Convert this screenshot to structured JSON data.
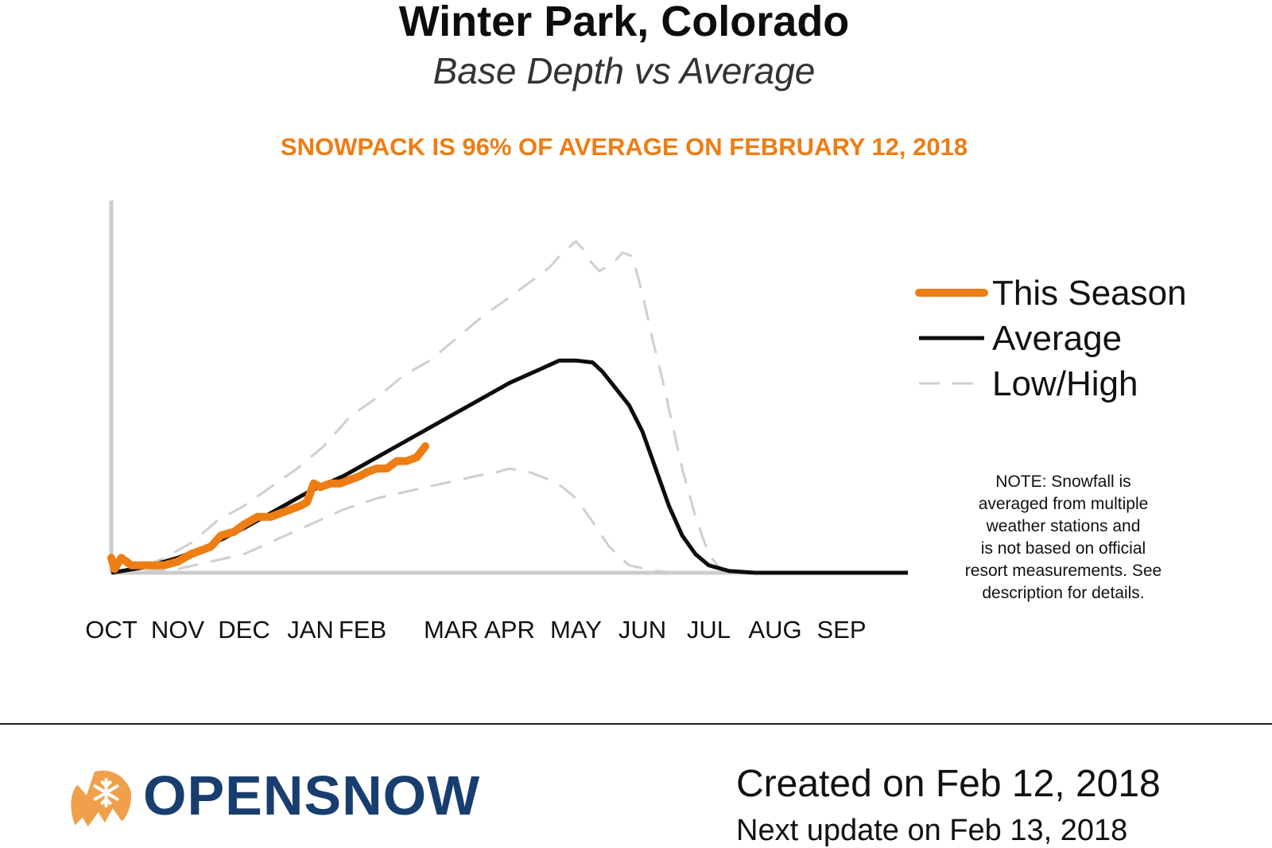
{
  "header": {
    "title": "Winter Park, Colorado",
    "subtitle": "Base Depth vs Average",
    "headline": "SNOWPACK IS 96% OF AVERAGE ON FEBRUARY 12, 2018"
  },
  "chart_data": {
    "type": "line",
    "title": "Winter Park, Colorado",
    "subtitle": "Base Depth vs Average",
    "xlabel": "",
    "ylabel": "",
    "x_ticks": [
      "OCT",
      "NOV",
      "DEC",
      "JAN",
      "FEB",
      "MAR",
      "APR",
      "MAY",
      "JUN",
      "JUL",
      "AUG",
      "SEP"
    ],
    "xlim": [
      0,
      12
    ],
    "ylim": [
      0,
      100
    ],
    "y_axis_labels_shown": false,
    "grid": false,
    "legend_position": "right",
    "x_unit": "months since Oct 1",
    "series": [
      {
        "name": "This Season",
        "style": "solid-thick",
        "color": "#ee7d14",
        "x": [
          0,
          0.05,
          0.15,
          0.3,
          0.5,
          0.8,
          1.0,
          1.2,
          1.35,
          1.5,
          1.65,
          1.85,
          2.0,
          2.1,
          2.2,
          2.4,
          2.55,
          2.7,
          2.85,
          2.95,
          3.05,
          3.15,
          3.3,
          3.45,
          3.6,
          3.75,
          3.85,
          4.0,
          4.15,
          4.3,
          4.45,
          4.6,
          4.73
        ],
        "y": [
          4,
          1,
          4,
          2,
          2,
          2,
          3,
          5,
          6,
          7,
          10,
          11,
          13,
          14,
          15,
          15,
          16,
          17,
          18,
          19,
          24,
          23,
          24,
          24,
          25,
          26,
          27,
          28,
          28,
          30,
          30,
          31,
          34
        ]
      },
      {
        "name": "Average",
        "style": "solid",
        "color": "#0d0d0d",
        "x": [
          0,
          0.5,
          1.0,
          1.5,
          2.0,
          2.5,
          3.0,
          3.5,
          4.0,
          4.5,
          5.0,
          5.5,
          6.0,
          6.5,
          6.75,
          7.0,
          7.25,
          7.4,
          7.6,
          7.8,
          8.0,
          8.2,
          8.4,
          8.6,
          8.8,
          9.0,
          9.3,
          9.7,
          10.0,
          12.0
        ],
        "y": [
          0,
          1.5,
          4,
          7.5,
          12,
          17,
          22,
          26,
          31,
          36,
          41,
          46,
          51,
          55,
          57,
          57,
          56.5,
          54,
          49.5,
          45,
          38,
          28,
          18,
          10,
          5,
          2,
          0.5,
          0,
          0,
          0
        ]
      },
      {
        "name": "Low/High",
        "style": "dashed",
        "color": "#cfcfcf",
        "bound": "high",
        "x": [
          0,
          0.4,
          0.8,
          1.2,
          1.6,
          2.0,
          2.4,
          2.8,
          3.2,
          3.6,
          4.0,
          4.4,
          4.8,
          5.2,
          5.6,
          6.0,
          6.3,
          6.6,
          6.8,
          7.0,
          7.1,
          7.2,
          7.35,
          7.55,
          7.7,
          7.85,
          8.0,
          8.15,
          8.3,
          8.45,
          8.6,
          8.8,
          9.0,
          9.2,
          9.4,
          9.6,
          10.0,
          12.0
        ],
        "y": [
          0,
          1,
          4,
          8,
          14,
          18,
          23,
          28,
          34,
          42,
          47,
          53,
          57,
          63,
          69,
          74,
          78,
          82,
          86,
          89,
          87,
          84,
          81,
          83,
          86,
          85,
          75,
          63,
          52,
          40,
          28,
          15,
          5,
          0.5,
          0,
          0,
          0,
          0
        ]
      },
      {
        "name": "Low/High",
        "style": "dashed",
        "color": "#cfcfcf",
        "bound": "low",
        "x": [
          0,
          0.5,
          1.0,
          1.5,
          2.0,
          2.5,
          3.0,
          3.5,
          4.0,
          4.5,
          5.0,
          5.5,
          5.8,
          6.0,
          6.3,
          6.6,
          6.8,
          7.0,
          7.2,
          7.5,
          7.8,
          8.2,
          8.6,
          9.0,
          12.0
        ],
        "y": [
          0,
          0.5,
          1,
          3,
          5,
          9,
          13,
          17,
          20,
          22,
          24,
          26,
          27,
          28,
          27,
          25,
          23,
          20,
          15,
          7,
          2,
          0.5,
          0,
          0,
          0
        ]
      }
    ],
    "legend": [
      {
        "label": "This Season",
        "style": "solid-thick",
        "color": "#ee7d14"
      },
      {
        "label": "Average",
        "style": "solid",
        "color": "#0d0d0d"
      },
      {
        "label": "Low/High",
        "style": "dashed",
        "color": "#cfcfcf"
      }
    ]
  },
  "note": {
    "lines": [
      "NOTE: Snowfall is",
      "averaged from multiple",
      "weather stations and",
      "is not based on official",
      "resort measurements. See",
      "description for details."
    ]
  },
  "footer": {
    "brand": "OPENSNOW",
    "logo_icon": "snowflake-mountain-icon",
    "brand_color": "#173e6e",
    "logo_color": "#f0a04b",
    "created": "Created on Feb 12, 2018",
    "next_update": "Next update on Feb 13, 2018"
  },
  "colors": {
    "accent": "#ee7d14",
    "axis": "#cccccc"
  }
}
